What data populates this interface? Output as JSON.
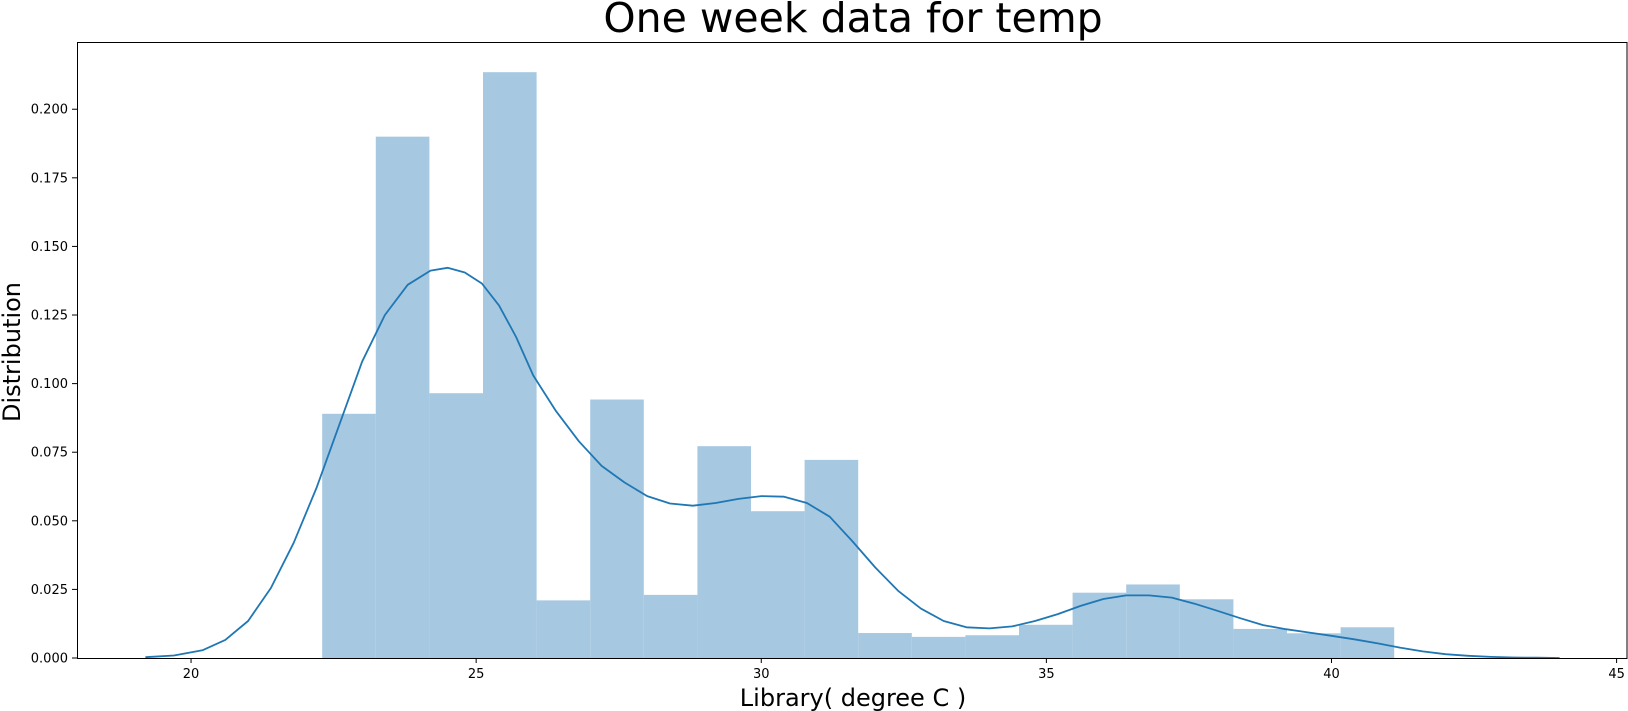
{
  "chart_data": {
    "type": "bar",
    "title": "One week data for temp",
    "xlabel": "Library( degree C )",
    "ylabel": "Distribution",
    "xlim": [
      18.0,
      45.2
    ],
    "ylim": [
      0.0,
      0.2245
    ],
    "xticks": [
      20,
      25,
      30,
      35,
      40,
      45
    ],
    "xtick_labels": [
      "20",
      "25",
      "30",
      "35",
      "40",
      "45"
    ],
    "yticks": [
      0.0,
      0.025,
      0.05,
      0.075,
      0.1,
      0.125,
      0.15,
      0.175,
      0.2
    ],
    "ytick_labels": [
      "0.000",
      "0.025",
      "0.050",
      "0.075",
      "0.100",
      "0.125",
      "0.150",
      "0.175",
      "0.200"
    ],
    "grid": false,
    "bar_color": "#a6c8e1",
    "line_color": "#1f77b4",
    "histogram": {
      "bin_edges": [
        22.3,
        23.24,
        24.18,
        25.12,
        26.06,
        27.0,
        27.94,
        28.88,
        29.82,
        30.76,
        31.7,
        32.64,
        33.58,
        34.52,
        35.46,
        36.4,
        37.34,
        38.28,
        39.22,
        40.16,
        41.1
      ],
      "densities": [
        0.089,
        0.19,
        0.0965,
        0.2135,
        0.021,
        0.0942,
        0.023,
        0.0772,
        0.0535,
        0.0722,
        0.0091,
        0.0077,
        0.0083,
        0.0121,
        0.0238,
        0.0268,
        0.0214,
        0.0106,
        0.009,
        0.0112
      ]
    },
    "kde": {
      "x": [
        19.2,
        19.7,
        20.2,
        20.6,
        21.0,
        21.4,
        21.8,
        22.2,
        22.6,
        23.0,
        23.4,
        23.8,
        24.2,
        24.5,
        24.8,
        25.1,
        25.4,
        25.7,
        26.0,
        26.4,
        26.8,
        27.2,
        27.6,
        28.0,
        28.4,
        28.8,
        29.2,
        29.6,
        30.0,
        30.4,
        30.8,
        31.2,
        31.6,
        32.0,
        32.4,
        32.8,
        33.2,
        33.6,
        34.0,
        34.4,
        34.8,
        35.2,
        35.6,
        36.0,
        36.4,
        36.8,
        37.2,
        37.6,
        38.0,
        38.4,
        38.8,
        39.2,
        39.6,
        40.0,
        40.4,
        40.8,
        41.2,
        41.6,
        42.0,
        42.4,
        42.8,
        43.2,
        43.6,
        44.0
      ],
      "y": [
        0.0003,
        0.0009,
        0.0028,
        0.0066,
        0.0135,
        0.0255,
        0.042,
        0.062,
        0.085,
        0.108,
        0.125,
        0.136,
        0.1412,
        0.1422,
        0.1405,
        0.1365,
        0.1285,
        0.117,
        0.103,
        0.09,
        0.079,
        0.07,
        0.064,
        0.059,
        0.0563,
        0.0555,
        0.0565,
        0.058,
        0.059,
        0.0588,
        0.0565,
        0.0515,
        0.0425,
        0.033,
        0.0245,
        0.018,
        0.0135,
        0.0112,
        0.0108,
        0.0115,
        0.0135,
        0.016,
        0.019,
        0.0215,
        0.0228,
        0.0228,
        0.022,
        0.0198,
        0.0172,
        0.0145,
        0.012,
        0.0105,
        0.0093,
        0.0081,
        0.0068,
        0.0054,
        0.0038,
        0.0024,
        0.0014,
        0.0008,
        0.0004,
        0.0002,
        0.0001,
        0.0
      ]
    }
  }
}
